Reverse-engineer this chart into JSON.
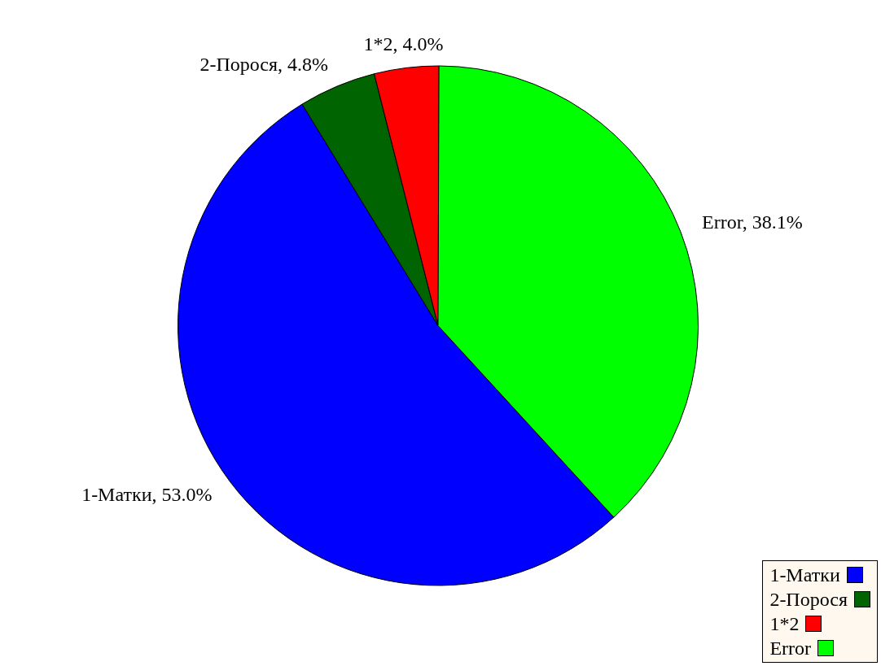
{
  "chart_data": {
    "type": "pie",
    "categories": [
      "1-Матки",
      "2-Порося",
      "1*2",
      "Error"
    ],
    "values": [
      53.0,
      4.8,
      4.0,
      38.1
    ],
    "value_labels": [
      "1-Матки, 53.0%",
      "2-Порося, 4.8%",
      "1*2, 4.0%",
      "Error, 38.1%"
    ],
    "colors": [
      "#0000ff",
      "#006400",
      "#ff0000",
      "#00ff00"
    ],
    "legend": "bottom right"
  }
}
